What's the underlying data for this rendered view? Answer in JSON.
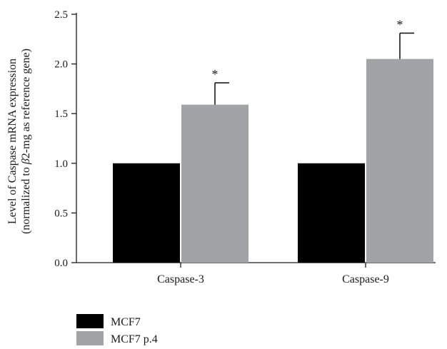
{
  "chart_data": {
    "type": "bar",
    "categories": [
      "Caspase-3",
      "Caspase-9"
    ],
    "series": [
      {
        "name": "MCF7",
        "values": [
          1.0,
          1.0
        ],
        "errors": [
          0,
          0
        ],
        "color": "#000000"
      },
      {
        "name": "MCF7 p.4",
        "values": [
          1.59,
          2.05
        ],
        "errors": [
          0.22,
          0.26
        ],
        "color": "#a2a3a6"
      }
    ],
    "significance": [
      {
        "category": "Caspase-3",
        "series": "MCF7 p.4",
        "mark": "*"
      },
      {
        "category": "Caspase-9",
        "series": "MCF7 p.4",
        "mark": "*"
      }
    ],
    "ylabel_line1": "Level of Caspase mRNA expression",
    "ylabel_pre": "(normalized to ",
    "ylabel_beta": "β",
    "ylabel_post": "2-mg as reference gene)",
    "ylim": [
      0,
      2.5
    ],
    "yticks": [
      "0.0",
      "0.5",
      "1.0",
      "1.5",
      "2.0",
      "2.5"
    ],
    "legend_position": "bottom-left",
    "grid": false
  }
}
